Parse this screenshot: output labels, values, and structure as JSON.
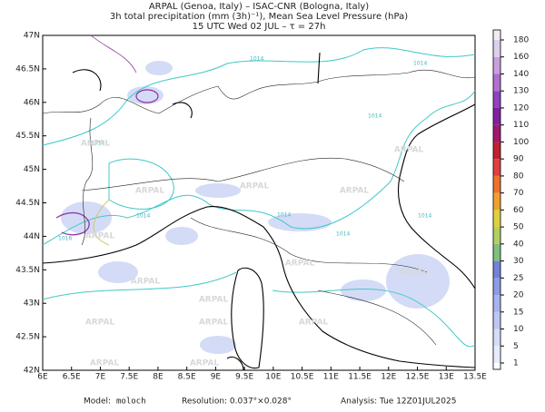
{
  "header": {
    "line1": "ARPAL (Genoa, Italy)  –  ISAC-CNR (Bologna, Italy)",
    "line2": "3h total precipitation (mm (3h)⁻¹), Mean Sea Level Pressure (hPa)",
    "line3": "15 UTC Wed 02 JUL  –  τ = 27h"
  },
  "map": {
    "lon_labels": [
      "6E",
      "6.5E",
      "7E",
      "7.5E",
      "8E",
      "8.5E",
      "9E",
      "9.5E",
      "10E",
      "10.5E",
      "11E",
      "11.5E",
      "12E",
      "12.5E",
      "13E",
      "13.5E"
    ],
    "lat_labels": [
      "42N",
      "42.5N",
      "43N",
      "43.5N",
      "44N",
      "44.5N",
      "45N",
      "45.5N",
      "46N",
      "46.5N",
      "47N"
    ],
    "contour_labels": [
      "1014",
      "1016"
    ],
    "watermark": "ARPAL"
  },
  "colorbar": {
    "levels": [
      1,
      5,
      10,
      15,
      20,
      25,
      30,
      40,
      50,
      60,
      70,
      80,
      90,
      100,
      110,
      120,
      130,
      140,
      160,
      180
    ],
    "colors": [
      "#ffffff",
      "#e8ecfa",
      "#d4dcf6",
      "#bcc8f2",
      "#a4b4ee",
      "#8c9ce6",
      "#7480dc",
      "#80c080",
      "#b0d060",
      "#e0d040",
      "#f0a030",
      "#f07030",
      "#e04040",
      "#c02030",
      "#a01870",
      "#8020a0",
      "#9040c0",
      "#b070d0",
      "#c8a0e0",
      "#dcd0ec",
      "#eeeeee"
    ]
  },
  "footer": {
    "model_label": "Model:",
    "model": "moloch",
    "resolution": "Resolution: 0.037°×0.028°",
    "analysis": "Analysis: Tue 12Z01JUL2025"
  }
}
